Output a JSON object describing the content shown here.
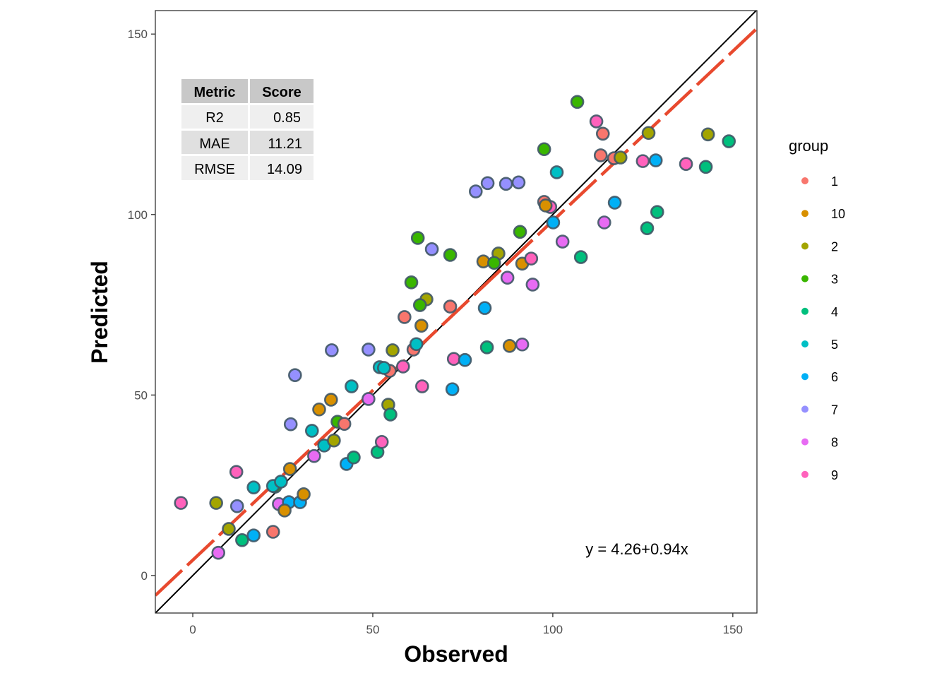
{
  "chart_data": {
    "type": "scatter",
    "title": "",
    "xlabel": "Observed",
    "ylabel": "Predicted",
    "xlim": [
      -10.4,
      156.7
    ],
    "ylim": [
      -10.4,
      156.5
    ],
    "xticks": [
      0,
      50,
      100,
      150
    ],
    "yticks": [
      0,
      50,
      100,
      150
    ],
    "grid": false,
    "legend": {
      "title": "group",
      "placement": "right",
      "entries": [
        {
          "label": "1",
          "color": "#F8766D"
        },
        {
          "label": "10",
          "color": "#D89000"
        },
        {
          "label": "2",
          "color": "#A3A500"
        },
        {
          "label": "3",
          "color": "#39B600"
        },
        {
          "label": "4",
          "color": "#00BF7D"
        },
        {
          "label": "5",
          "color": "#00BFC4"
        },
        {
          "label": "6",
          "color": "#00B0F6"
        },
        {
          "label": "7",
          "color": "#9590FF"
        },
        {
          "label": "8",
          "color": "#E76BF3"
        },
        {
          "label": "9",
          "color": "#FF62BC"
        }
      ]
    },
    "point_outline_color": "#3F5766",
    "reference_line": {
      "label": "y = x",
      "intercept": 0,
      "slope": 1,
      "color": "#000000"
    },
    "fit_line": {
      "intercept": 4.26,
      "slope": 0.94,
      "color": "#E8492E",
      "style": "dashed"
    },
    "annotation": "y = 4.26+0.94x",
    "metrics_table": {
      "headers": [
        "Metric",
        "Score"
      ],
      "rows": [
        [
          "R2",
          "0.85"
        ],
        [
          "MAE",
          "11.21"
        ],
        [
          "RMSE",
          "14.09"
        ]
      ]
    },
    "points": [
      {
        "x": -3.3,
        "y": 20.1,
        "group": "9"
      },
      {
        "x": 6.5,
        "y": 20.1,
        "group": "2"
      },
      {
        "x": 12.3,
        "y": 19.2,
        "group": "7"
      },
      {
        "x": 12.1,
        "y": 28.7,
        "group": "9"
      },
      {
        "x": 16.9,
        "y": 24.4,
        "group": "5"
      },
      {
        "x": 10.0,
        "y": 12.9,
        "group": "2"
      },
      {
        "x": 7.1,
        "y": 6.3,
        "group": "8"
      },
      {
        "x": 13.7,
        "y": 9.8,
        "group": "4"
      },
      {
        "x": 16.9,
        "y": 11.1,
        "group": "6"
      },
      {
        "x": 22.3,
        "y": 12.1,
        "group": "1"
      },
      {
        "x": 22.9,
        "y": 24.6,
        "group": "3"
      },
      {
        "x": 22.3,
        "y": 24.8,
        "group": "5"
      },
      {
        "x": 24.5,
        "y": 26.0,
        "group": "5"
      },
      {
        "x": 23.9,
        "y": 19.8,
        "group": "8"
      },
      {
        "x": 26.7,
        "y": 20.3,
        "group": "6"
      },
      {
        "x": 25.5,
        "y": 18.0,
        "group": "10"
      },
      {
        "x": 29.8,
        "y": 20.3,
        "group": "6"
      },
      {
        "x": 30.8,
        "y": 22.5,
        "group": "10"
      },
      {
        "x": 27.0,
        "y": 29.5,
        "group": "10"
      },
      {
        "x": 27.2,
        "y": 41.9,
        "group": "7"
      },
      {
        "x": 28.4,
        "y": 55.5,
        "group": "7"
      },
      {
        "x": 33.1,
        "y": 40.1,
        "group": "5"
      },
      {
        "x": 33.7,
        "y": 33.1,
        "group": "8"
      },
      {
        "x": 36.5,
        "y": 36.0,
        "group": "5"
      },
      {
        "x": 35.1,
        "y": 46.0,
        "group": "10"
      },
      {
        "x": 38.4,
        "y": 48.7,
        "group": "10"
      },
      {
        "x": 38.6,
        "y": 62.4,
        "group": "7"
      },
      {
        "x": 39.2,
        "y": 37.4,
        "group": "2"
      },
      {
        "x": 40.2,
        "y": 42.6,
        "group": "3"
      },
      {
        "x": 42.1,
        "y": 42.0,
        "group": "1"
      },
      {
        "x": 42.7,
        "y": 30.9,
        "group": "6"
      },
      {
        "x": 44.7,
        "y": 32.7,
        "group": "4"
      },
      {
        "x": 44.1,
        "y": 52.4,
        "group": "5"
      },
      {
        "x": 48.8,
        "y": 62.6,
        "group": "7"
      },
      {
        "x": 48.8,
        "y": 48.9,
        "group": "8"
      },
      {
        "x": 51.3,
        "y": 34.2,
        "group": "4"
      },
      {
        "x": 52.5,
        "y": 37.0,
        "group": "9"
      },
      {
        "x": 54.7,
        "y": 56.7,
        "group": "1"
      },
      {
        "x": 51.9,
        "y": 57.7,
        "group": "5"
      },
      {
        "x": 53.1,
        "y": 57.5,
        "group": "5"
      },
      {
        "x": 54.3,
        "y": 47.3,
        "group": "2"
      },
      {
        "x": 54.9,
        "y": 44.6,
        "group": "4"
      },
      {
        "x": 55.5,
        "y": 62.4,
        "group": "2"
      },
      {
        "x": 58.4,
        "y": 57.9,
        "group": "9"
      },
      {
        "x": 58.8,
        "y": 71.6,
        "group": "1"
      },
      {
        "x": 60.7,
        "y": 81.2,
        "group": "3"
      },
      {
        "x": 61.3,
        "y": 62.6,
        "group": "1"
      },
      {
        "x": 62.1,
        "y": 64.1,
        "group": "5"
      },
      {
        "x": 62.5,
        "y": 93.5,
        "group": "3"
      },
      {
        "x": 64.9,
        "y": 76.5,
        "group": "2"
      },
      {
        "x": 63.1,
        "y": 74.9,
        "group": "3"
      },
      {
        "x": 63.5,
        "y": 69.2,
        "group": "10"
      },
      {
        "x": 63.7,
        "y": 52.4,
        "group": "9"
      },
      {
        "x": 66.4,
        "y": 90.4,
        "group": "7"
      },
      {
        "x": 71.5,
        "y": 88.8,
        "group": "3"
      },
      {
        "x": 71.5,
        "y": 74.5,
        "group": "1"
      },
      {
        "x": 72.1,
        "y": 51.6,
        "group": "6"
      },
      {
        "x": 72.5,
        "y": 60.0,
        "group": "9"
      },
      {
        "x": 75.6,
        "y": 59.7,
        "group": "6"
      },
      {
        "x": 78.6,
        "y": 106.4,
        "group": "7"
      },
      {
        "x": 81.9,
        "y": 108.7,
        "group": "7"
      },
      {
        "x": 81.1,
        "y": 74.1,
        "group": "6"
      },
      {
        "x": 81.7,
        "y": 63.2,
        "group": "4"
      },
      {
        "x": 80.7,
        "y": 87.0,
        "group": "10"
      },
      {
        "x": 84.9,
        "y": 89.2,
        "group": "2"
      },
      {
        "x": 83.7,
        "y": 86.6,
        "group": "3"
      },
      {
        "x": 87.0,
        "y": 108.5,
        "group": "7"
      },
      {
        "x": 90.5,
        "y": 108.9,
        "group": "7"
      },
      {
        "x": 87.4,
        "y": 82.5,
        "group": "8"
      },
      {
        "x": 88.0,
        "y": 63.6,
        "group": "10"
      },
      {
        "x": 91.5,
        "y": 64.0,
        "group": "8"
      },
      {
        "x": 90.9,
        "y": 95.2,
        "group": "3"
      },
      {
        "x": 91.5,
        "y": 86.4,
        "group": "10"
      },
      {
        "x": 94.0,
        "y": 87.8,
        "group": "9"
      },
      {
        "x": 94.4,
        "y": 80.6,
        "group": "8"
      },
      {
        "x": 97.6,
        "y": 118.1,
        "group": "3"
      },
      {
        "x": 97.6,
        "y": 103.5,
        "group": "1"
      },
      {
        "x": 99.3,
        "y": 102.1,
        "group": "9"
      },
      {
        "x": 98.0,
        "y": 102.5,
        "group": "10"
      },
      {
        "x": 100.1,
        "y": 97.8,
        "group": "6"
      },
      {
        "x": 101.1,
        "y": 111.7,
        "group": "5"
      },
      {
        "x": 102.7,
        "y": 92.5,
        "group": "8"
      },
      {
        "x": 107.8,
        "y": 88.2,
        "group": "4"
      },
      {
        "x": 106.8,
        "y": 131.2,
        "group": "3"
      },
      {
        "x": 112.1,
        "y": 125.8,
        "group": "9"
      },
      {
        "x": 113.9,
        "y": 122.4,
        "group": "1"
      },
      {
        "x": 113.3,
        "y": 116.4,
        "group": "1"
      },
      {
        "x": 114.3,
        "y": 97.8,
        "group": "8"
      },
      {
        "x": 117.2,
        "y": 103.3,
        "group": "6"
      },
      {
        "x": 117.0,
        "y": 115.6,
        "group": "1"
      },
      {
        "x": 118.8,
        "y": 115.8,
        "group": "2"
      },
      {
        "x": 126.6,
        "y": 122.6,
        "group": "2"
      },
      {
        "x": 125.0,
        "y": 114.8,
        "group": "9"
      },
      {
        "x": 128.6,
        "y": 115.0,
        "group": "6"
      },
      {
        "x": 126.2,
        "y": 96.2,
        "group": "4"
      },
      {
        "x": 129.0,
        "y": 100.7,
        "group": "4"
      },
      {
        "x": 137.0,
        "y": 114.0,
        "group": "9"
      },
      {
        "x": 143.1,
        "y": 122.2,
        "group": "2"
      },
      {
        "x": 142.5,
        "y": 113.2,
        "group": "4"
      },
      {
        "x": 148.9,
        "y": 120.3,
        "group": "4"
      }
    ]
  }
}
